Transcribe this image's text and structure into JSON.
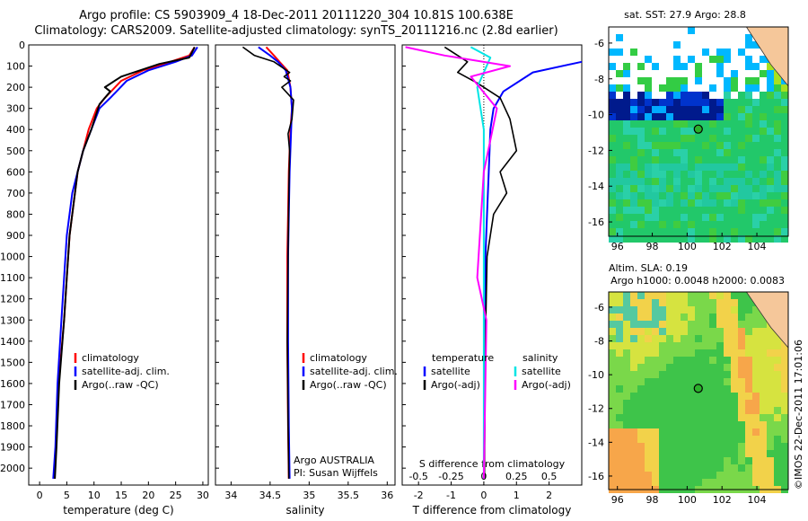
{
  "header": {
    "line1": "Argo profile: CS 5903909_4 18-Dec-2011 20111220_304 10.81S 100.638E",
    "line2": "Climatology: CARS2009. Satellite-adjusted climatology: synTS_20111216.nc (2.8d earlier)"
  },
  "colors": {
    "climatology": "#ff0000",
    "satellite": "#0000ff",
    "argo": "#000000",
    "sat_salinity": "#00e5e5",
    "argo_salinity": "#ff00ff"
  },
  "chart_data": [
    {
      "type": "line",
      "name": "temperature-profile",
      "xlabel": "temperature (deg C)",
      "xlim": [
        -2,
        31
      ],
      "ylim": [
        2080,
        0
      ],
      "xticks": [
        "0",
        "5",
        "10",
        "15",
        "20",
        "25",
        "30"
      ],
      "yticks": [
        "0",
        "100",
        "200",
        "300",
        "400",
        "500",
        "600",
        "700",
        "800",
        "900",
        "1000",
        "1100",
        "1200",
        "1300",
        "1400",
        "1500",
        "1600",
        "1700",
        "1800",
        "1900",
        "2000"
      ],
      "legend": [
        "climatology",
        "satellite-adj. clim.",
        "Argo(..raw -QC)"
      ],
      "series": [
        {
          "name": "climatology",
          "x": [
            28.5,
            27.5,
            24,
            19,
            15,
            12,
            10.5,
            9,
            8,
            7,
            6.5,
            5.5,
            5,
            4.5,
            3.5,
            3,
            2.7
          ],
          "y": [
            10,
            50,
            80,
            120,
            170,
            250,
            300,
            400,
            500,
            600,
            700,
            900,
            1100,
            1300,
            1600,
            1900,
            2050
          ]
        },
        {
          "name": "satellite-adj. clim.",
          "x": [
            29,
            28,
            25,
            20,
            16,
            13,
            11,
            9.5,
            8,
            7,
            6,
            5,
            4.5,
            4,
            3.3,
            2.9,
            2.5
          ],
          "y": [
            10,
            50,
            80,
            120,
            170,
            250,
            300,
            400,
            500,
            600,
            700,
            900,
            1100,
            1300,
            1600,
            1900,
            2050
          ]
        },
        {
          "name": "Argo(..raw -QC)",
          "x": [
            28.5,
            27.5,
            22,
            15,
            12,
            13,
            11,
            9.5,
            8,
            7,
            6.5,
            5.5,
            5,
            4.5,
            3.6,
            3.1,
            2.8
          ],
          "y": [
            10,
            60,
            90,
            150,
            200,
            220,
            280,
            400,
            500,
            600,
            700,
            900,
            1100,
            1300,
            1600,
            1900,
            2050
          ]
        }
      ]
    },
    {
      "type": "line",
      "name": "salinity-profile",
      "xlabel": "salinity",
      "xlim": [
        33.8,
        36.1
      ],
      "ylim": [
        2080,
        0
      ],
      "xticks": [
        "34",
        "34.5",
        "35",
        "35.5",
        "36"
      ],
      "legend": [
        "climatology",
        "satellite-adj. clim.",
        "Argo(..raw -QC)"
      ],
      "annotation": [
        "Argo AUSTRALIA",
        "PI: Susan Wijffels"
      ],
      "series": [
        {
          "name": "climatology",
          "x": [
            34.45,
            34.55,
            34.62,
            34.72,
            34.76,
            34.78,
            34.76,
            34.74,
            34.73,
            34.72,
            34.72,
            34.73,
            34.74
          ],
          "y": [
            10,
            50,
            80,
            120,
            200,
            300,
            400,
            600,
            800,
            1000,
            1400,
            1800,
            2050
          ]
        },
        {
          "name": "satellite-adj. clim.",
          "x": [
            34.35,
            34.5,
            34.6,
            34.7,
            34.76,
            34.78,
            34.77,
            34.75,
            34.74,
            34.73,
            34.73,
            34.74,
            34.75
          ],
          "y": [
            10,
            50,
            80,
            120,
            200,
            300,
            400,
            600,
            800,
            1000,
            1400,
            1800,
            2050
          ]
        },
        {
          "name": "Argo(..raw -QC)",
          "x": [
            34.15,
            34.3,
            34.55,
            34.75,
            34.68,
            34.76,
            34.65,
            34.8,
            34.78,
            34.73,
            34.75,
            34.74,
            34.73,
            34.72,
            34.73,
            34.74
          ],
          "y": [
            10,
            50,
            80,
            130,
            150,
            170,
            200,
            260,
            350,
            420,
            500,
            700,
            1000,
            1400,
            1800,
            2050
          ]
        }
      ]
    },
    {
      "type": "line",
      "name": "difference-profile",
      "xlabel": "T difference from climatology",
      "xlabel2": "S difference from climatology",
      "xlim": [
        -2.5,
        3
      ],
      "ylim": [
        2080,
        0
      ],
      "xticks": [
        "-2",
        "-1",
        "0",
        "1",
        "2"
      ],
      "xticks2": [
        "-0.5",
        "-0.25",
        "0",
        "0.25",
        "0.5"
      ],
      "legend_t": [
        "temperature",
        "satellite",
        "Argo(-adj)"
      ],
      "legend_s": [
        "salinity",
        "satellite",
        "Argo(-adj)"
      ],
      "series": [
        {
          "name": "T satellite",
          "x": [
            3,
            1.5,
            0.6,
            0.3,
            0.2,
            0.15,
            0.1,
            0.05,
            0.05,
            0.02,
            0
          ],
          "y": [
            80,
            130,
            220,
            300,
            400,
            600,
            800,
            1000,
            1400,
            1800,
            2050
          ]
        },
        {
          "name": "T Argo(-adj)",
          "x": [
            -1.2,
            -0.5,
            -0.8,
            -0.2,
            0.5,
            0.8,
            1.0,
            0.5,
            0.7,
            0.3,
            0.1,
            0.05,
            0.02
          ],
          "y": [
            10,
            80,
            130,
            180,
            250,
            350,
            500,
            600,
            700,
            800,
            1000,
            1400,
            2050
          ]
        },
        {
          "name": "S satellite",
          "x": [
            -0.1,
            0.05,
            -0.05,
            0,
            0,
            0,
            0,
            0
          ],
          "y": [
            10,
            60,
            200,
            400,
            800,
            1200,
            1600,
            2050
          ]
        },
        {
          "name": "S Argo(-adj)",
          "x": [
            -0.6,
            -0.3,
            0.2,
            -0.1,
            0.1,
            0,
            -0.05,
            0.02,
            0
          ],
          "y": [
            10,
            50,
            100,
            150,
            300,
            600,
            1100,
            1300,
            2050
          ]
        }
      ]
    },
    {
      "type": "heatmap",
      "name": "sst-map",
      "title": "sat. SST: 27.9 Argo: 28.8",
      "xlim": [
        95.5,
        105.8
      ],
      "ylim": [
        -16.8,
        -5.1
      ],
      "xticks": [
        "96",
        "98",
        "100",
        "102",
        "104"
      ],
      "yticks": [
        "-6",
        "-8",
        "-10",
        "-12",
        "-14",
        "-16"
      ],
      "marker": {
        "lon": 100.638,
        "lat": -10.81
      }
    },
    {
      "type": "heatmap",
      "name": "sla-map",
      "title": "Altim. SLA: 0.19",
      "subtitle": "Argo h1000: 0.0048 h2000: 0.0083",
      "xlim": [
        95.5,
        105.8
      ],
      "ylim": [
        -16.8,
        -5.1
      ],
      "xticks": [
        "96",
        "98",
        "100",
        "102",
        "104"
      ],
      "yticks": [
        "-6",
        "-8",
        "-10",
        "-12",
        "-14",
        "-16"
      ],
      "marker": {
        "lon": 100.638,
        "lat": -10.81
      }
    }
  ],
  "footer": {
    "credit": "©IMOS 22-Dec-2011 17:01:06"
  }
}
